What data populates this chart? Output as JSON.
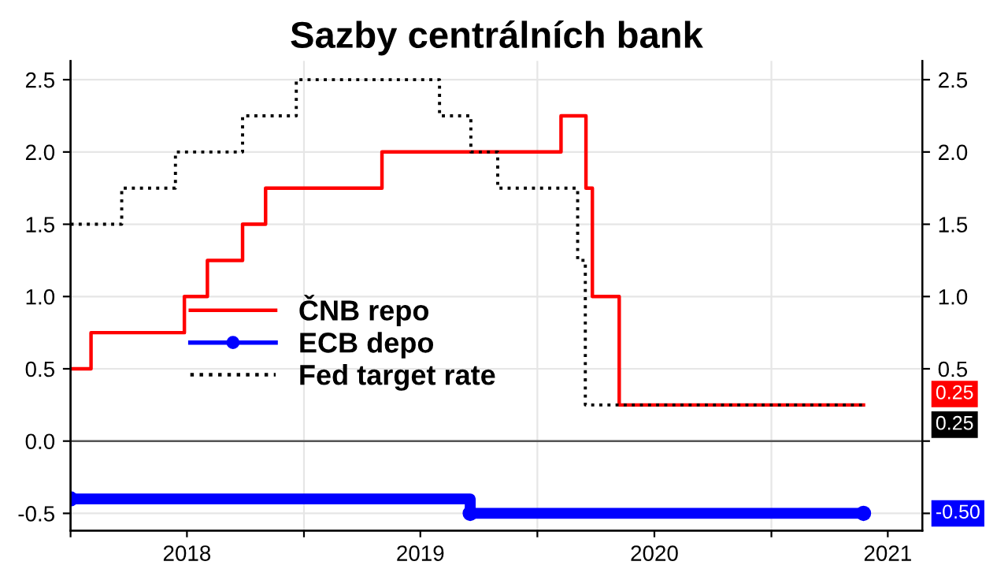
{
  "chart_data": {
    "type": "step",
    "title": "Sazby centrálních bank",
    "series": [
      {
        "name": "ČNB repo",
        "color": "#ff0000",
        "line_style": "solid",
        "marker": "none",
        "x": [
          "2018-01-01",
          "2018-02-02",
          "2018-06-28",
          "2018-08-03",
          "2018-09-27",
          "2018-11-02",
          "2019-05-03",
          "2020-02-07",
          "2020-03-17",
          "2020-03-27",
          "2020-05-08",
          "2021-05-25"
        ],
        "values": [
          0.5,
          0.75,
          1.0,
          1.25,
          1.5,
          1.75,
          2.0,
          2.25,
          1.75,
          1.0,
          0.25,
          0.25
        ]
      },
      {
        "name": "ECB depo",
        "color": "#0000ff",
        "line_style": "solid",
        "marker": "circle",
        "x": [
          "2018-01-01",
          "2019-09-18",
          "2021-05-25"
        ],
        "values": [
          -0.4,
          -0.5,
          -0.5
        ]
      },
      {
        "name": "Fed target rate",
        "color": "#000000",
        "line_style": "dotted",
        "marker": "none",
        "x": [
          "2018-01-01",
          "2018-03-22",
          "2018-06-14",
          "2018-09-27",
          "2018-12-20",
          "2019-08-01",
          "2019-09-19",
          "2019-10-31",
          "2020-03-04",
          "2020-03-16",
          "2021-05-25"
        ],
        "values": [
          1.5,
          1.75,
          2.0,
          2.25,
          2.5,
          2.25,
          2.0,
          1.75,
          1.25,
          0.25,
          0.25
        ]
      }
    ],
    "annotations": [
      "0.25",
      "-0.50",
      "0.25"
    ],
    "xlim": [
      "2018-01-01",
      "2021-08-25"
    ],
    "xticks": [
      {
        "value": "2018-01-01",
        "label": null
      },
      {
        "value": "2018-07-02",
        "label": "2018"
      },
      {
        "value": "2019-01-01",
        "label": null
      },
      {
        "value": "2019-07-02",
        "label": "2019"
      },
      {
        "value": "2020-01-01",
        "label": null
      },
      {
        "value": "2020-07-02",
        "label": "2020"
      },
      {
        "value": "2021-01-01",
        "label": null
      },
      {
        "value": "2021-07-02",
        "label": "2021"
      }
    ],
    "ylim": [
      -0.62,
      2.63
    ],
    "yticks": [
      {
        "value": -0.5,
        "label": "-0.5"
      },
      {
        "value": 0,
        "label": "0.0"
      },
      {
        "value": 0.5,
        "label": "0.5"
      },
      {
        "value": 1,
        "label": "1.0"
      },
      {
        "value": 1.5,
        "label": "1.5"
      },
      {
        "value": 2,
        "label": "2.0"
      },
      {
        "value": 2.5,
        "label": "2.5"
      }
    ],
    "y2lim": [
      -0.62,
      2.63
    ],
    "y2ticks": [
      {
        "value": -0.5,
        "label": null
      },
      {
        "value": 0,
        "label": null
      },
      {
        "value": 0.5,
        "label": "0.5"
      },
      {
        "value": 1,
        "label": "1.0"
      },
      {
        "value": 1.5,
        "label": "1.5"
      },
      {
        "value": 2,
        "label": "2.0"
      },
      {
        "value": 2.5,
        "label": "2.5"
      }
    ],
    "ref_lines": [
      {
        "axis": "y",
        "value": 0,
        "label": null,
        "color": "#555555",
        "line_style": "solid"
      }
    ],
    "grid": true,
    "legend": "center"
  }
}
